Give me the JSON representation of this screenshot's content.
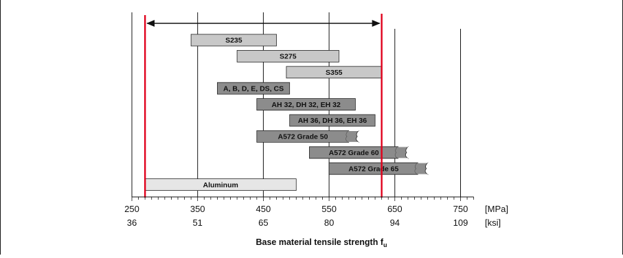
{
  "chart_data": {
    "type": "bar",
    "orientation": "horizontal-range",
    "xlabel": "Base material tensile strength f",
    "xlabel_subscript": "u",
    "x_unit_primary": "[MPa]",
    "x_unit_secondary": "[ksi]",
    "xlim": [
      250,
      770
    ],
    "x_ticks": [
      {
        "mpa": 250,
        "label": "250",
        "ksi_label": "36"
      },
      {
        "mpa": 350,
        "label": "350",
        "ksi_label": "51"
      },
      {
        "mpa": 450,
        "label": "450",
        "ksi_label": "65"
      },
      {
        "mpa": 550,
        "label": "550",
        "ksi_label": "80"
      },
      {
        "mpa": 650,
        "label": "650",
        "ksi_label": "94"
      },
      {
        "mpa": 750,
        "label": "750",
        "ksi_label": "109"
      }
    ],
    "grid_lines": [
      250,
      350,
      450,
      550,
      650,
      750
    ],
    "grid": true,
    "range_lines": {
      "min": 270,
      "max": 630,
      "color": "#e0001b",
      "arrow": true
    },
    "bars": [
      {
        "label": "S235",
        "start": 340,
        "end": 470,
        "color": "#c8c8c8",
        "open_end": false
      },
      {
        "label": "S275",
        "start": 410,
        "end": 565,
        "color": "#c8c8c8",
        "open_end": false
      },
      {
        "label": "S355",
        "start": 485,
        "end": 630,
        "color": "#c8c8c8",
        "open_end": false
      },
      {
        "label": "A, B, D, E, DS, CS",
        "start": 380,
        "end": 490,
        "color": "#8c8c8c",
        "open_end": false
      },
      {
        "label": "AH 32, DH 32, EH 32",
        "start": 440,
        "end": 590,
        "color": "#8c8c8c",
        "open_end": false
      },
      {
        "label": "AH 36, DH 36, EH 36",
        "start": 490,
        "end": 620,
        "color": "#8c8c8c",
        "open_end": false
      },
      {
        "label": "A572 Grade 50",
        "start": 440,
        "end": 595,
        "color": "#8c8c8c",
        "open_end": true
      },
      {
        "label": "A572 Grade 60",
        "start": 520,
        "end": 670,
        "color": "#8c8c8c",
        "open_end": true
      },
      {
        "label": "A572 Grade 65",
        "start": 550,
        "end": 700,
        "color": "#8c8c8c",
        "open_end": true
      },
      {
        "label": "Aluminum",
        "start": 270,
        "end": 500,
        "color": "#e6e6e6",
        "open_end": false
      }
    ]
  }
}
